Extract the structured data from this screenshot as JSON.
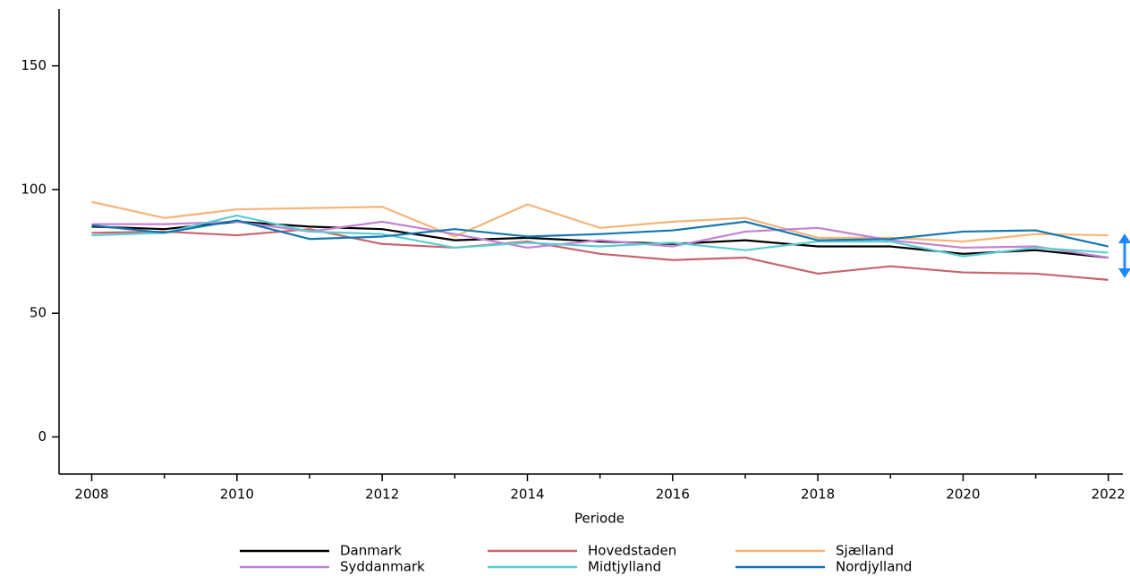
{
  "chart_data": {
    "type": "line",
    "x_label": "Periode",
    "x": [
      2008,
      2009,
      2010,
      2011,
      2012,
      2013,
      2014,
      2015,
      2016,
      2017,
      2018,
      2019,
      2020,
      2021,
      2022
    ],
    "series": [
      {
        "name": "Danmark",
        "color": "#000000",
        "values": [
          85,
          84,
          87,
          85,
          84,
          79.5,
          80.5,
          79,
          78,
          79.5,
          77,
          77,
          74,
          75.5,
          72.5
        ]
      },
      {
        "name": "Hovedstaden",
        "color": "#c8646e",
        "values": [
          82.5,
          83,
          81.5,
          84,
          78,
          76.5,
          79,
          74,
          71.5,
          72.5,
          66,
          69,
          66.5,
          66,
          63.5
        ]
      },
      {
        "name": "Sjælland",
        "color": "#f5b478",
        "values": [
          95,
          88.5,
          92,
          92.5,
          93,
          81,
          94,
          84.5,
          87,
          88.5,
          80.5,
          80.5,
          79,
          82,
          81.5
        ]
      },
      {
        "name": "Syddanmark",
        "color": "#c382d2",
        "values": [
          86,
          86,
          87,
          83,
          87,
          82,
          76.5,
          79.5,
          77,
          83,
          84.5,
          79.5,
          76.5,
          77,
          72.5
        ]
      },
      {
        "name": "Midtjylland",
        "color": "#5acdd2",
        "values": [
          81.5,
          82.5,
          89.5,
          83,
          82,
          76.5,
          78.5,
          77,
          78.5,
          75.5,
          79,
          79,
          73,
          76.5,
          74.5
        ]
      },
      {
        "name": "Nordjylland",
        "color": "#1478af",
        "values": [
          85.5,
          82.5,
          87.5,
          80,
          81,
          84,
          81,
          82,
          83.5,
          87,
          79.5,
          80,
          83,
          83.5,
          77
        ]
      }
    ],
    "xlim": [
      2007.55,
      2022.2
    ],
    "ylim": [
      -15,
      173
    ],
    "xticks": [
      2008,
      2010,
      2012,
      2014,
      2016,
      2018,
      2020,
      2022
    ],
    "xminorticks": [
      2009,
      2011,
      2013,
      2015,
      2017,
      2019,
      2021
    ],
    "yticks": [
      0,
      50,
      100,
      150
    ]
  }
}
